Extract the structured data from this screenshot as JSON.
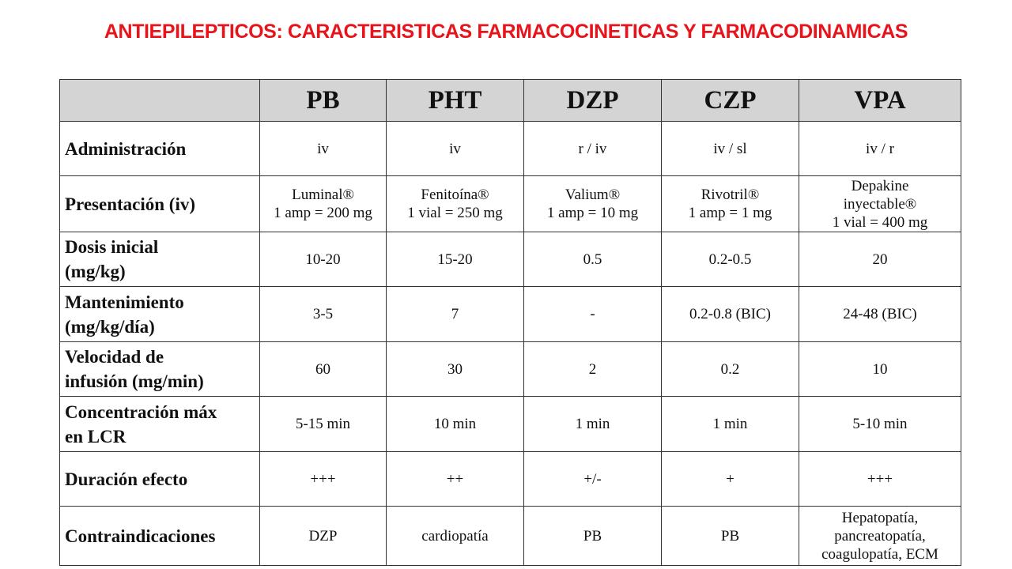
{
  "title": "ANTIEPILEPTICOS: CARACTERISTICAS FARMACOCINETICAS Y FARMACODINAMICAS",
  "table": {
    "corner": "",
    "columns": [
      "PB",
      "PHT",
      "DZP",
      "CZP",
      "VPA"
    ],
    "rows": [
      {
        "label": [
          "Administración"
        ],
        "cells": [
          [
            "iv"
          ],
          [
            "iv"
          ],
          [
            "r / iv"
          ],
          [
            "iv / sl"
          ],
          [
            "iv / r"
          ]
        ]
      },
      {
        "label": [
          "Presentación (iv)"
        ],
        "cells": [
          [
            "Luminal®",
            "1 amp = 200 mg"
          ],
          [
            "Fenitoína®",
            "1 vial = 250 mg"
          ],
          [
            "Valium®",
            "1 amp = 10 mg"
          ],
          [
            "Rivotril®",
            "1 amp = 1 mg"
          ],
          [
            "Depakine",
            "inyectable®",
            "1 vial = 400 mg"
          ]
        ]
      },
      {
        "label": [
          "Dosis inicial",
          "(mg/kg)"
        ],
        "cells": [
          [
            "10-20"
          ],
          [
            "15-20"
          ],
          [
            "0.5"
          ],
          [
            "0.2-0.5"
          ],
          [
            "20"
          ]
        ]
      },
      {
        "label": [
          "Mantenimiento",
          "(mg/kg/día)"
        ],
        "cells": [
          [
            "3-5"
          ],
          [
            "7"
          ],
          [
            "-"
          ],
          [
            "0.2-0.8 (BIC)"
          ],
          [
            "24-48 (BIC)"
          ]
        ]
      },
      {
        "label": [
          "Velocidad de",
          "infusión (mg/min)"
        ],
        "cells": [
          [
            "60"
          ],
          [
            "30"
          ],
          [
            "2"
          ],
          [
            "0.2"
          ],
          [
            "10"
          ]
        ]
      },
      {
        "label": [
          "Concentración máx",
          "en LCR"
        ],
        "cells": [
          [
            "5-15 min"
          ],
          [
            "10 min"
          ],
          [
            "1 min"
          ],
          [
            "1 min"
          ],
          [
            "5-10 min"
          ]
        ]
      },
      {
        "label": [
          "Duración efecto"
        ],
        "cells": [
          [
            "+++"
          ],
          [
            "++"
          ],
          [
            "+/-"
          ],
          [
            "+"
          ],
          [
            "+++"
          ]
        ]
      },
      {
        "label": [
          "Contraindicaciones"
        ],
        "cells": [
          [
            "DZP"
          ],
          [
            "cardiopatía"
          ],
          [
            "PB"
          ],
          [
            "PB"
          ],
          [
            "Hepatopatía,",
            "pancreatopatía,",
            "coagulopatía,  ECM"
          ]
        ]
      }
    ]
  }
}
